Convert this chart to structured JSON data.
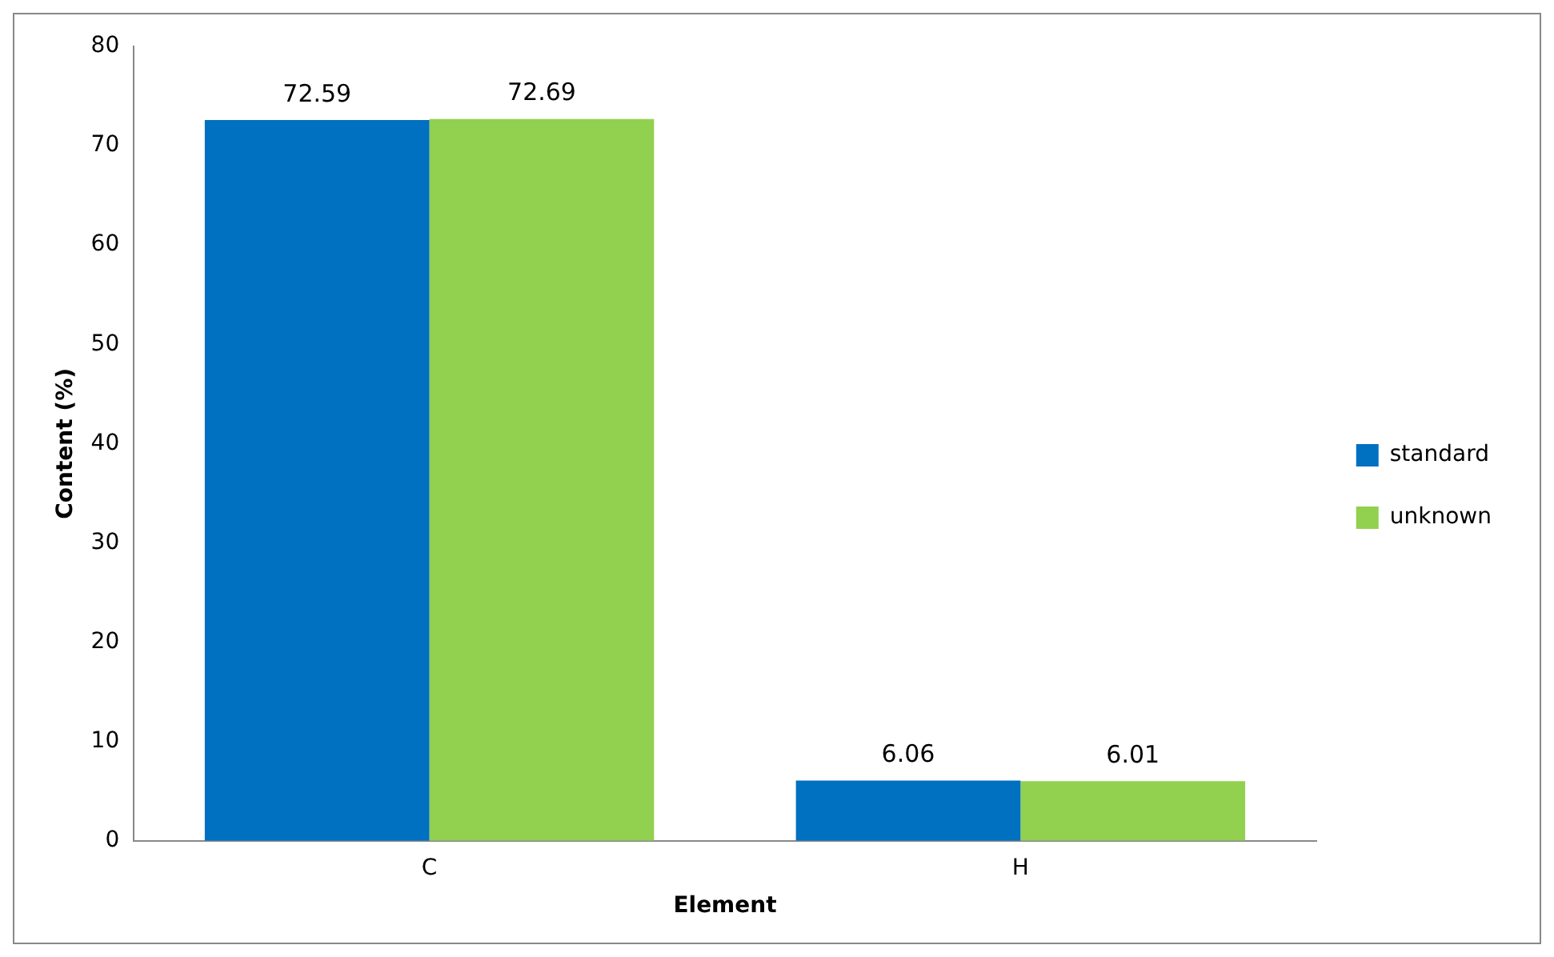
{
  "chart_data": {
    "type": "bar",
    "xlabel": "Element",
    "ylabel": "Content (%)",
    "categories": [
      "C",
      "H"
    ],
    "series": [
      {
        "name": "standard",
        "color": "#0070c0",
        "values": [
          72.59,
          6.06
        ]
      },
      {
        "name": "unknown",
        "color": "#92d050",
        "values": [
          72.69,
          6.01
        ]
      }
    ],
    "ylim": [
      0,
      80
    ],
    "yticks": [
      0,
      10,
      20,
      30,
      40,
      50,
      60,
      70,
      80
    ],
    "data_labels": true,
    "grid": false,
    "legend": "right"
  }
}
